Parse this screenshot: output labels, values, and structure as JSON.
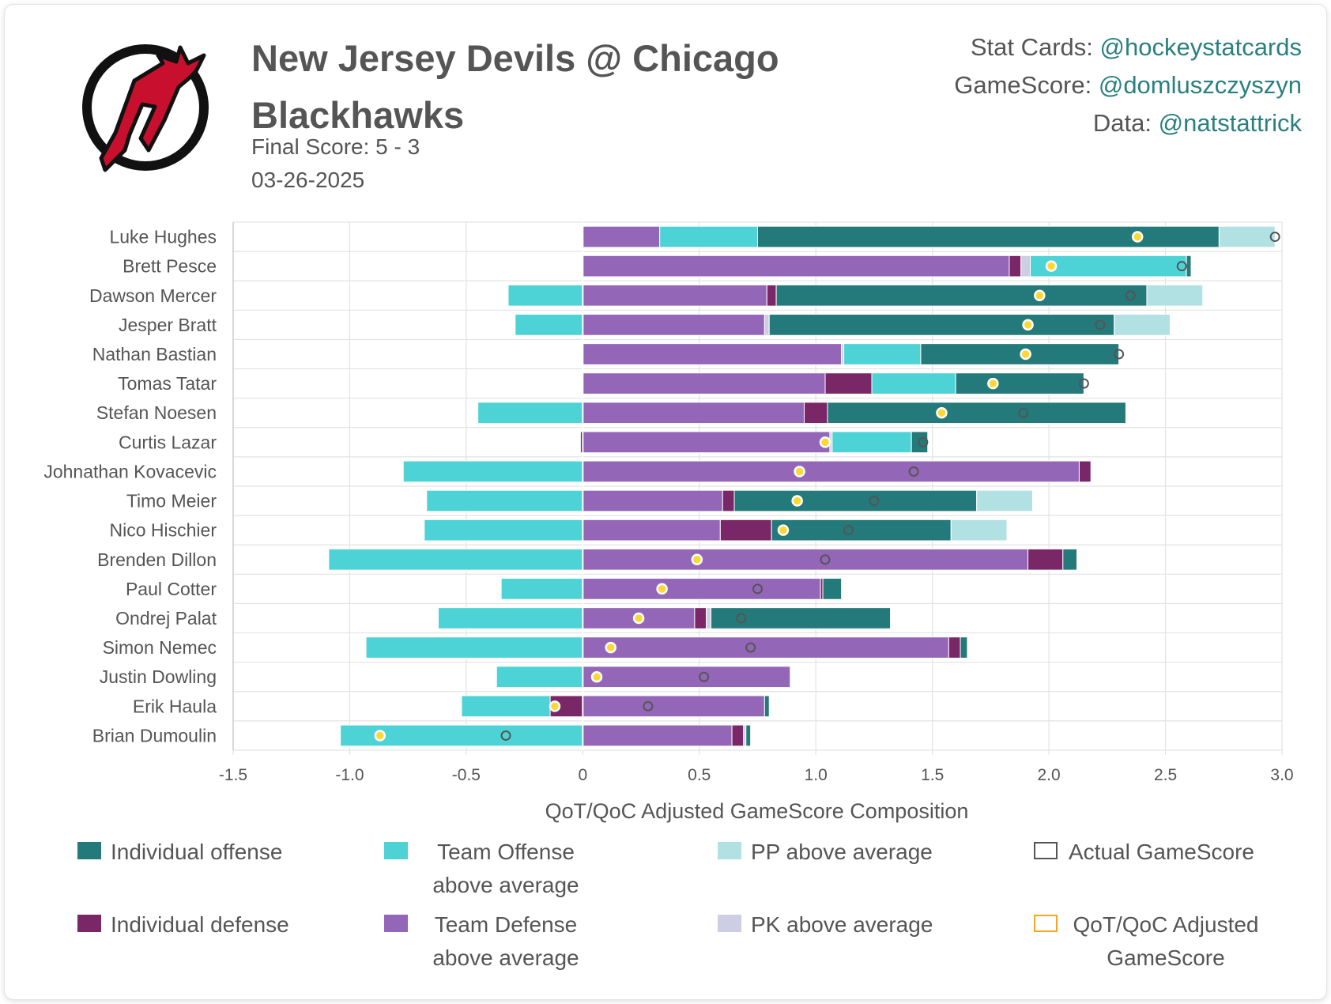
{
  "header": {
    "title": "New Jersey Devils @ Chicago Blackhawks",
    "final_score": "Final Score: 5 - 3",
    "date": "03-26-2025"
  },
  "credits": [
    {
      "label": "Stat Cards: ",
      "handle": "@hockeystatcards"
    },
    {
      "label": "GameScore: ",
      "handle": "@domluszczyszyn"
    },
    {
      "label": "Data: ",
      "handle": "@natstattrick"
    }
  ],
  "colors": {
    "individual_offense": "#24797a",
    "team_offense": "#4dd3d5",
    "pp": "#b2e1e3",
    "individual_defense": "#7a2768",
    "team_defense": "#9466b8",
    "pk": "#cdcde3",
    "actual_marker": "#555555",
    "adjusted_marker": "#f5a623",
    "logo_red": "#c8102e"
  },
  "legend": {
    "individual_offense": "Individual offense",
    "team_offense": "Team Offense above average",
    "pp": "PP above average",
    "actual": "Actual GameScore",
    "individual_defense": "Individual defense",
    "team_defense": "Team Defense above average",
    "pk": "PK above average",
    "adjusted": "QoT/QoC Adjusted GameScore"
  },
  "chart_data": {
    "type": "bar",
    "orientation": "horizontal-stacked",
    "xlabel": "QoT/QoC Adjusted GameScore Composition",
    "xlim": [
      -1.5,
      3.0
    ],
    "xticks": [
      -1.5,
      -1.0,
      -0.5,
      0,
      0.5,
      1.0,
      1.5,
      2.0,
      2.5,
      3.0
    ],
    "xtick_labels": [
      "-1.5",
      "-1.0",
      "-0.5",
      "0",
      "0.5",
      "1.0",
      "1.5",
      "2.0",
      "2.5",
      "3.0"
    ],
    "grid": true,
    "legend_position": "bottom",
    "categories": [
      "Luke Hughes",
      "Brett Pesce",
      "Dawson Mercer",
      "Jesper Bratt",
      "Nathan Bastian",
      "Tomas Tatar",
      "Stefan Noesen",
      "Curtis Lazar",
      "Johnathan Kovacevic",
      "Timo Meier",
      "Nico Hischier",
      "Brenden Dillon",
      "Paul Cotter",
      "Ondrej Palat",
      "Simon Nemec",
      "Justin Dowling",
      "Erik Haula",
      "Brian Dumoulin"
    ],
    "series": [
      {
        "name": "Team Defense above average",
        "key": "team_defense",
        "values": [
          0.33,
          1.83,
          0.79,
          0.78,
          1.11,
          1.04,
          0.95,
          1.06,
          2.13,
          0.6,
          0.59,
          1.91,
          1.02,
          0.48,
          1.57,
          0.89,
          0.78,
          0.64
        ]
      },
      {
        "name": "Individual defense",
        "key": "individual_defense",
        "values": [
          0,
          0.05,
          0.04,
          0,
          0,
          0.2,
          0.1,
          -0.01,
          0.05,
          0.05,
          0.22,
          0.15,
          0.01,
          0.05,
          0.05,
          0,
          -0.14,
          0.05
        ]
      },
      {
        "name": "PK above average",
        "key": "pk",
        "values": [
          0,
          0.04,
          0,
          0.02,
          0.01,
          0,
          0,
          0.01,
          0,
          0,
          0,
          0,
          0,
          0.02,
          0,
          0,
          0,
          0.01
        ]
      },
      {
        "name": "Team Offense above average",
        "key": "team_offense",
        "values": [
          0.42,
          0.67,
          -0.32,
          -0.29,
          0.33,
          0.36,
          -0.45,
          0.34,
          -0.77,
          -0.67,
          -0.68,
          -1.09,
          -0.35,
          -0.62,
          -0.93,
          -0.37,
          -0.38,
          -1.04
        ]
      },
      {
        "name": "Individual offense",
        "key": "individual_offense",
        "values": [
          1.98,
          0.02,
          1.59,
          1.48,
          0.85,
          0.55,
          1.28,
          0.07,
          0,
          1.04,
          0.77,
          0.06,
          0.08,
          0.77,
          0.03,
          0,
          0.02,
          0.02
        ]
      },
      {
        "name": "PP above average",
        "key": "pp",
        "values": [
          0.24,
          0,
          0.24,
          0.24,
          0,
          0,
          0,
          0,
          0,
          0.24,
          0.24,
          0,
          0,
          0,
          0,
          0,
          0,
          0
        ]
      }
    ],
    "actual_gamescore": [
      2.97,
      2.57,
      2.35,
      2.22,
      2.3,
      2.15,
      1.89,
      1.46,
      1.42,
      1.25,
      1.14,
      1.04,
      0.75,
      0.68,
      0.72,
      0.52,
      0.28,
      -0.33
    ],
    "adjusted_gamescore": [
      2.38,
      2.01,
      1.96,
      1.91,
      1.9,
      1.76,
      1.54,
      1.04,
      0.93,
      0.92,
      0.86,
      0.49,
      0.34,
      0.24,
      0.12,
      0.06,
      -0.12,
      -0.87
    ]
  }
}
